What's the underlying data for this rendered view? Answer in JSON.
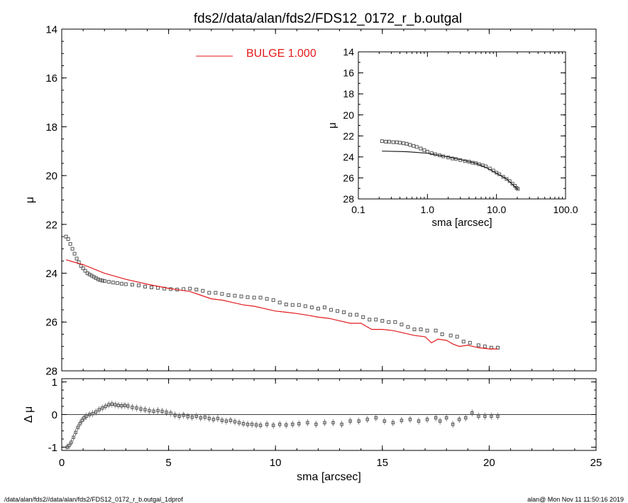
{
  "title": "fds2//data/alan/fds2/FDS12_0172_r_b.outgal",
  "footer_left": "/data/alan/fds2//data/alan/fds2/FDS12_0172_r_b.outgal_1dprof",
  "footer_right": "alan@  Mon Nov 11 11:50:16 2019",
  "colors": {
    "model": "#e31a1c",
    "data": "#555555",
    "axes": "#000000"
  },
  "chart_data": [
    {
      "id": "main",
      "type": "scatter",
      "xlabel": "",
      "ylabel": "μ",
      "xlim": [
        0,
        25
      ],
      "ylim": [
        28,
        14
      ],
      "y_inverted": true,
      "xticks": [
        "0",
        "5",
        "10",
        "15",
        "20",
        "25"
      ],
      "yticks": [
        "14",
        "16",
        "18",
        "20",
        "22",
        "24",
        "26",
        "28"
      ],
      "legend": {
        "label": "BULGE  1.000",
        "placement": "top-center"
      },
      "series": [
        {
          "name": "",
          "style": "square-markers",
          "points": [
            [
              0.2,
              22.5
            ],
            [
              0.3,
              22.6
            ],
            [
              0.4,
              22.8
            ],
            [
              0.5,
              23.0
            ],
            [
              0.6,
              23.2
            ],
            [
              0.7,
              23.4
            ],
            [
              0.8,
              23.55
            ],
            [
              0.9,
              23.7
            ],
            [
              1.0,
              23.8
            ],
            [
              1.1,
              23.9
            ],
            [
              1.2,
              24.0
            ],
            [
              1.3,
              24.05
            ],
            [
              1.4,
              24.1
            ],
            [
              1.5,
              24.15
            ],
            [
              1.6,
              24.2
            ],
            [
              1.7,
              24.25
            ],
            [
              1.8,
              24.28
            ],
            [
              1.9,
              24.3
            ],
            [
              2.0,
              24.32
            ],
            [
              2.2,
              24.35
            ],
            [
              2.4,
              24.38
            ],
            [
              2.6,
              24.4
            ],
            [
              2.8,
              24.43
            ],
            [
              3.0,
              24.45
            ],
            [
              3.3,
              24.47
            ],
            [
              3.6,
              24.5
            ],
            [
              3.9,
              24.55
            ],
            [
              4.2,
              24.58
            ],
            [
              4.5,
              24.6
            ],
            [
              4.8,
              24.63
            ],
            [
              5.1,
              24.65
            ],
            [
              5.4,
              24.67
            ],
            [
              5.7,
              24.65
            ],
            [
              6.0,
              24.63
            ],
            [
              6.3,
              24.67
            ],
            [
              6.6,
              24.72
            ],
            [
              6.9,
              24.8
            ],
            [
              7.2,
              24.8
            ],
            [
              7.5,
              24.85
            ],
            [
              7.8,
              24.9
            ],
            [
              8.1,
              24.92
            ],
            [
              8.4,
              24.95
            ],
            [
              8.7,
              24.98
            ],
            [
              9.0,
              25.0
            ],
            [
              9.3,
              25.0
            ],
            [
              9.6,
              25.05
            ],
            [
              9.9,
              25.1
            ],
            [
              10.2,
              25.2
            ],
            [
              10.5,
              25.28
            ],
            [
              10.8,
              25.3
            ],
            [
              11.1,
              25.3
            ],
            [
              11.4,
              25.35
            ],
            [
              11.7,
              25.4
            ],
            [
              12.0,
              25.45
            ],
            [
              12.3,
              25.4
            ],
            [
              12.6,
              25.5
            ],
            [
              12.9,
              25.55
            ],
            [
              13.2,
              25.6
            ],
            [
              13.5,
              25.7
            ],
            [
              13.8,
              25.7
            ],
            [
              14.1,
              25.8
            ],
            [
              14.4,
              25.9
            ],
            [
              14.7,
              25.9
            ],
            [
              15.0,
              25.95
            ],
            [
              15.3,
              26.0
            ],
            [
              15.6,
              26.0
            ],
            [
              15.9,
              26.1
            ],
            [
              16.2,
              26.2
            ],
            [
              16.5,
              26.3
            ],
            [
              16.8,
              26.3
            ],
            [
              17.1,
              26.35
            ],
            [
              17.5,
              26.35
            ],
            [
              17.8,
              26.5
            ],
            [
              18.2,
              26.55
            ],
            [
              18.5,
              26.6
            ],
            [
              18.8,
              26.8
            ],
            [
              19.1,
              26.85
            ],
            [
              19.5,
              26.95
            ],
            [
              19.8,
              27.0
            ],
            [
              20.1,
              27.05
            ],
            [
              20.4,
              27.05
            ]
          ]
        },
        {
          "name": "BULGE  1.000",
          "style": "line",
          "points": [
            [
              0.2,
              23.45
            ],
            [
              1.0,
              23.65
            ],
            [
              2.0,
              24.0
            ],
            [
              3.0,
              24.25
            ],
            [
              4.0,
              24.45
            ],
            [
              5.0,
              24.62
            ],
            [
              6.0,
              24.75
            ],
            [
              6.5,
              24.9
            ],
            [
              7.0,
              25.05
            ],
            [
              7.5,
              25.1
            ],
            [
              8.0,
              25.2
            ],
            [
              8.5,
              25.3
            ],
            [
              9.0,
              25.35
            ],
            [
              9.5,
              25.45
            ],
            [
              10.0,
              25.55
            ],
            [
              10.5,
              25.6
            ],
            [
              11.0,
              25.65
            ],
            [
              11.5,
              25.72
            ],
            [
              12.0,
              25.8
            ],
            [
              12.5,
              25.85
            ],
            [
              13.0,
              25.95
            ],
            [
              13.5,
              26.05
            ],
            [
              14.0,
              26.05
            ],
            [
              14.5,
              26.3
            ],
            [
              15.0,
              26.3
            ],
            [
              15.5,
              26.35
            ],
            [
              16.0,
              26.45
            ],
            [
              16.5,
              26.55
            ],
            [
              17.0,
              26.6
            ],
            [
              17.3,
              26.85
            ],
            [
              17.6,
              26.7
            ],
            [
              18.0,
              26.75
            ],
            [
              18.3,
              26.9
            ],
            [
              18.6,
              27.0
            ],
            [
              19.0,
              26.95
            ],
            [
              19.5,
              27.05
            ],
            [
              20.0,
              27.1
            ],
            [
              20.4,
              27.1
            ]
          ]
        }
      ]
    },
    {
      "id": "residual",
      "type": "scatter",
      "xlabel": "sma [arcsec]",
      "ylabel": "Δ μ",
      "xlim": [
        0,
        25
      ],
      "ylim": [
        -1.1,
        1.1
      ],
      "xticks": [
        "0",
        "5",
        "10",
        "15",
        "20",
        "25"
      ],
      "yticks": [
        "-1",
        "0",
        "1"
      ],
      "reference_line": 0,
      "series": [
        {
          "name": "",
          "style": "square-markers-with-errorbars",
          "points": [
            [
              0.25,
              -1.0
            ],
            [
              0.35,
              -0.95
            ],
            [
              0.45,
              -0.85
            ],
            [
              0.55,
              -0.7
            ],
            [
              0.65,
              -0.55
            ],
            [
              0.75,
              -0.4
            ],
            [
              0.85,
              -0.28
            ],
            [
              0.95,
              -0.18
            ],
            [
              1.05,
              -0.1
            ],
            [
              1.15,
              -0.05
            ],
            [
              1.3,
              0.0
            ],
            [
              1.45,
              0.03
            ],
            [
              1.6,
              0.08
            ],
            [
              1.75,
              0.15
            ],
            [
              1.9,
              0.2
            ],
            [
              2.05,
              0.25
            ],
            [
              2.2,
              0.3
            ],
            [
              2.35,
              0.32
            ],
            [
              2.5,
              0.3
            ],
            [
              2.65,
              0.28
            ],
            [
              2.8,
              0.27
            ],
            [
              2.95,
              0.28
            ],
            [
              3.1,
              0.26
            ],
            [
              3.3,
              0.22
            ],
            [
              3.5,
              0.2
            ],
            [
              3.7,
              0.17
            ],
            [
              3.9,
              0.15
            ],
            [
              4.1,
              0.12
            ],
            [
              4.3,
              0.1
            ],
            [
              4.5,
              0.12
            ],
            [
              4.7,
              0.1
            ],
            [
              4.9,
              0.07
            ],
            [
              5.1,
              0.04
            ],
            [
              5.3,
              -0.02
            ],
            [
              5.5,
              -0.05
            ],
            [
              5.7,
              -0.02
            ],
            [
              5.9,
              -0.06
            ],
            [
              6.1,
              -0.08
            ],
            [
              6.3,
              -0.05
            ],
            [
              6.5,
              -0.1
            ],
            [
              6.7,
              -0.08
            ],
            [
              6.9,
              -0.12
            ],
            [
              7.1,
              -0.15
            ],
            [
              7.3,
              -0.12
            ],
            [
              7.5,
              -0.18
            ],
            [
              7.7,
              -0.2
            ],
            [
              7.9,
              -0.18
            ],
            [
              8.1,
              -0.22
            ],
            [
              8.3,
              -0.25
            ],
            [
              8.5,
              -0.28
            ],
            [
              8.7,
              -0.3
            ],
            [
              8.9,
              -0.3
            ],
            [
              9.1,
              -0.32
            ],
            [
              9.3,
              -0.33
            ],
            [
              9.6,
              -0.3
            ],
            [
              9.9,
              -0.33
            ],
            [
              10.2,
              -0.3
            ],
            [
              10.5,
              -0.32
            ],
            [
              10.8,
              -0.3
            ],
            [
              11.1,
              -0.28
            ],
            [
              11.5,
              -0.25
            ],
            [
              11.9,
              -0.3
            ],
            [
              12.3,
              -0.25
            ],
            [
              12.7,
              -0.25
            ],
            [
              13.1,
              -0.3
            ],
            [
              13.5,
              -0.2
            ],
            [
              13.9,
              -0.2
            ],
            [
              14.3,
              -0.15
            ],
            [
              14.7,
              -0.1
            ],
            [
              15.1,
              -0.2
            ],
            [
              15.5,
              -0.25
            ],
            [
              15.9,
              -0.18
            ],
            [
              16.3,
              -0.15
            ],
            [
              16.7,
              -0.2
            ],
            [
              17.1,
              -0.15
            ],
            [
              17.5,
              -0.1
            ],
            [
              17.7,
              -0.2
            ],
            [
              18.0,
              -0.1
            ],
            [
              18.3,
              -0.3
            ],
            [
              18.6,
              -0.15
            ],
            [
              18.9,
              -0.1
            ],
            [
              19.2,
              0.05
            ],
            [
              19.5,
              -0.05
            ],
            [
              19.8,
              -0.05
            ],
            [
              20.1,
              -0.05
            ],
            [
              20.4,
              -0.05
            ]
          ]
        }
      ]
    },
    {
      "id": "inset",
      "type": "scatter",
      "xlabel": "sma [arcsec]",
      "ylabel": "μ",
      "x_scale": "log",
      "xlim": [
        0.1,
        100.0
      ],
      "ylim": [
        28,
        14
      ],
      "y_inverted": true,
      "xticks": [
        "0.1",
        "1.0",
        "10.0",
        "100.0"
      ],
      "yticks": [
        "14",
        "16",
        "18",
        "20",
        "22",
        "24",
        "26",
        "28"
      ],
      "series": [
        {
          "name": "",
          "style": "square-markers",
          "points": [
            [
              0.22,
              22.5
            ],
            [
              0.25,
              22.55
            ],
            [
              0.28,
              22.55
            ],
            [
              0.32,
              22.6
            ],
            [
              0.36,
              22.6
            ],
            [
              0.4,
              22.65
            ],
            [
              0.45,
              22.7
            ],
            [
              0.5,
              22.75
            ],
            [
              0.56,
              22.85
            ],
            [
              0.63,
              22.95
            ],
            [
              0.7,
              23.05
            ],
            [
              0.8,
              23.2
            ],
            [
              0.9,
              23.35
            ],
            [
              1.0,
              23.5
            ],
            [
              1.15,
              23.65
            ],
            [
              1.3,
              23.75
            ],
            [
              1.5,
              23.85
            ],
            [
              1.7,
              23.95
            ],
            [
              2.0,
              24.05
            ],
            [
              2.3,
              24.15
            ],
            [
              2.6,
              24.2
            ],
            [
              3.0,
              24.3
            ],
            [
              3.5,
              24.4
            ],
            [
              4.0,
              24.45
            ],
            [
              4.5,
              24.55
            ],
            [
              5.0,
              24.6
            ],
            [
              5.6,
              24.7
            ],
            [
              6.3,
              24.8
            ],
            [
              7.0,
              24.9
            ],
            [
              8.0,
              25.1
            ],
            [
              9.0,
              25.3
            ],
            [
              10.0,
              25.5
            ],
            [
              11.0,
              25.65
            ],
            [
              12.5,
              25.9
            ],
            [
              14.0,
              26.1
            ],
            [
              15.5,
              26.3
            ],
            [
              17.0,
              26.55
            ],
            [
              18.5,
              26.75
            ],
            [
              19.5,
              26.95
            ],
            [
              20.4,
              27.05
            ]
          ]
        },
        {
          "name": "BULGE  1.000",
          "style": "line",
          "points": [
            [
              0.22,
              23.45
            ],
            [
              0.5,
              23.5
            ],
            [
              1.0,
              23.65
            ],
            [
              2.0,
              24.0
            ],
            [
              3.0,
              24.25
            ],
            [
              5.0,
              24.6
            ],
            [
              7.0,
              25.0
            ],
            [
              10.0,
              25.55
            ],
            [
              14.0,
              26.1
            ],
            [
              17.0,
              26.6
            ],
            [
              20.4,
              27.1
            ]
          ]
        }
      ]
    }
  ]
}
